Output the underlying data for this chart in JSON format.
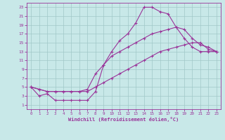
{
  "xlabel": "Windchill (Refroidissement éolien,°C)",
  "xlim": [
    -0.5,
    23.5
  ],
  "ylim": [
    0,
    24
  ],
  "xticks": [
    0,
    1,
    2,
    3,
    4,
    5,
    6,
    7,
    8,
    9,
    10,
    11,
    12,
    13,
    14,
    15,
    16,
    17,
    18,
    19,
    20,
    21,
    22,
    23
  ],
  "yticks": [
    1,
    3,
    5,
    7,
    9,
    11,
    13,
    15,
    17,
    19,
    21,
    23
  ],
  "background_color": "#c8e8e8",
  "grid_color": "#a0c8c8",
  "line_color": "#993399",
  "curve1_x": [
    0,
    1,
    2,
    3,
    4,
    5,
    6,
    7,
    8,
    9,
    10,
    11,
    12,
    13,
    14,
    15,
    16,
    17,
    18,
    19,
    20,
    21,
    22,
    23
  ],
  "curve1_y": [
    5,
    3,
    3.5,
    2,
    2,
    2,
    2,
    2,
    4,
    10,
    13,
    15.5,
    17,
    19.5,
    23,
    23,
    22,
    21.5,
    18.5,
    16,
    14,
    13,
    13,
    13
  ],
  "curve2_x": [
    0,
    1,
    2,
    3,
    4,
    5,
    6,
    7,
    8,
    9,
    10,
    11,
    12,
    13,
    14,
    15,
    16,
    17,
    18,
    19,
    20,
    21,
    22,
    23
  ],
  "curve2_y": [
    5,
    4.5,
    4,
    4,
    4,
    4,
    4,
    4.5,
    8,
    10,
    12,
    13,
    14,
    15,
    16,
    17,
    17.5,
    18,
    18.5,
    18,
    16,
    14.5,
    14,
    13
  ],
  "curve3_x": [
    0,
    1,
    2,
    3,
    4,
    5,
    6,
    7,
    8,
    9,
    10,
    11,
    12,
    13,
    14,
    15,
    16,
    17,
    18,
    19,
    20,
    21,
    22,
    23
  ],
  "curve3_y": [
    5,
    4.5,
    4,
    4,
    4,
    4,
    4,
    4,
    5,
    6,
    7,
    8,
    9,
    10,
    11,
    12,
    13,
    13.5,
    14,
    14.5,
    15,
    15,
    13.5,
    13
  ]
}
